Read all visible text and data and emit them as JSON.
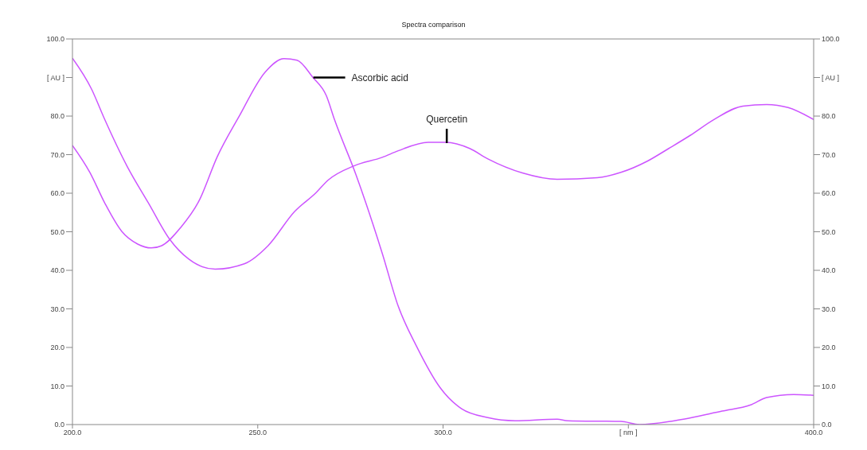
{
  "chart_data": {
    "type": "line",
    "title": "Spectra comparison",
    "xlim": [
      200,
      400
    ],
    "xticks": [
      {
        "value": 200,
        "label": "200.0"
      },
      {
        "value": 250,
        "label": "250.0"
      },
      {
        "value": 300,
        "label": "300.0"
      },
      {
        "value": 350,
        "label": "[ nm ]"
      },
      {
        "value": 400,
        "label": "400.0"
      }
    ],
    "ylim": [
      0,
      100
    ],
    "yticks": [
      {
        "value": 0,
        "label": "0.0"
      },
      {
        "value": 10,
        "label": "10.0"
      },
      {
        "value": 20,
        "label": "20.0"
      },
      {
        "value": 30,
        "label": "30.0"
      },
      {
        "value": 40,
        "label": "40.0"
      },
      {
        "value": 50,
        "label": "50.0"
      },
      {
        "value": 60,
        "label": "60.0"
      },
      {
        "value": 70,
        "label": "70.0"
      },
      {
        "value": 80,
        "label": "80.0"
      },
      {
        "value": 90,
        "label": "[ AU ]"
      },
      {
        "value": 100,
        "label": "100.0"
      }
    ],
    "y2lim": [
      0,
      100
    ],
    "y2ticks": [
      {
        "value": 0,
        "label": "0.0"
      },
      {
        "value": 10,
        "label": "10.0"
      },
      {
        "value": 20,
        "label": "20.0"
      },
      {
        "value": 30,
        "label": "30.0"
      },
      {
        "value": 40,
        "label": "40.0"
      },
      {
        "value": 50,
        "label": "50.0"
      },
      {
        "value": 60,
        "label": "60.0"
      },
      {
        "value": 70,
        "label": "70.0"
      },
      {
        "value": 80,
        "label": "80.0"
      },
      {
        "value": 90,
        "label": "[ AU ]"
      },
      {
        "value": 100,
        "label": "100.0"
      }
    ],
    "grid": false,
    "marker": "none",
    "line_style": "solid",
    "annotations": [
      {
        "text": "Ascorbic acid",
        "x": 265,
        "y": 90
      },
      {
        "text": "Quercetin",
        "x": 301,
        "y": 73
      }
    ],
    "series": [
      {
        "color": "#cc55ff",
        "x": [
          200,
          204.7,
          208.8,
          213.3,
          217.6,
          221.3,
          224.1,
          229.2,
          234.2,
          239.1,
          244.9,
          252,
          257.1,
          260.6,
          264.9,
          268.5,
          270.7,
          276.5,
          283.6,
          287.9,
          292.8,
          299.2,
          305,
          312.1,
          319.4,
          330.8,
          333.6,
          348,
          353,
          362.4,
          375.3,
          383,
          387.3,
          394.6,
          400
        ],
        "values": [
          72.4,
          65.4,
          57.3,
          50.1,
          46.8,
          45.8,
          46.4,
          51.1,
          58.1,
          69.5,
          79.8,
          91.4,
          94.9,
          94.5,
          90,
          85.3,
          79.1,
          64.8,
          44.4,
          30.7,
          20.4,
          9.6,
          4.1,
          1.8,
          1,
          1.4,
          1,
          0.8,
          0,
          1,
          3.5,
          5.1,
          7,
          7.8,
          7.6
        ]
      },
      {
        "color": "#cc55ff",
        "x": [
          200,
          205.2,
          208.4,
          214.8,
          220.6,
          226.2,
          231.4,
          238.5,
          246.4,
          252.8,
          259.9,
          265.7,
          269,
          276,
          283.6,
          287.9,
          296,
          300.8,
          307.2,
          312.1,
          321.6,
          330.8,
          341.6,
          348,
          355.1,
          360.9,
          366.7,
          373.1,
          380.9,
          387.3,
          393.1,
          400
        ],
        "values": [
          95,
          86.9,
          79.8,
          66.9,
          57.3,
          48.1,
          42.9,
          40.3,
          41.7,
          46.4,
          55.2,
          60.1,
          63.4,
          67.1,
          69.3,
          71,
          73.2,
          73.2,
          71.6,
          68.9,
          65.2,
          63.6,
          64,
          65.4,
          68.3,
          71.6,
          75,
          79.1,
          82.6,
          83,
          82.2,
          79.1
        ]
      }
    ]
  }
}
